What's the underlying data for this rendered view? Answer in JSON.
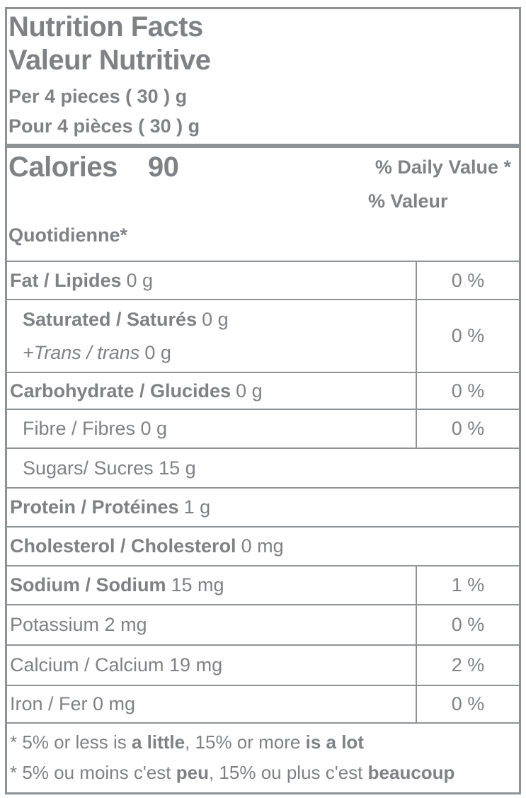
{
  "nutrition_label": {
    "title_en": "Nutrition Facts",
    "title_fr": "Valeur Nutritive",
    "serving_en": "Per 4 pieces ( 30 ) g",
    "serving_fr": "Pour 4 pièces ( 30 ) g",
    "calories": {
      "label": "Calories",
      "value": "90"
    },
    "daily_value_header_en": "% Daily Value *",
    "daily_value_header_fr_line1": "% Valeur",
    "daily_value_header_fr_line2": "Quotidienne*",
    "rows": [
      {
        "name_bold": "Fat / Lipides",
        "value": "0 g",
        "dv": "0 %"
      },
      {
        "name_bold": "Saturated / Saturés",
        "value": "0 g",
        "sub_italic": "+Trans / trans",
        "sub_value": "0 g",
        "dv": "0 %"
      },
      {
        "name_bold": "Carbohydrate / Glucides",
        "value": "0 g",
        "dv": "0 %"
      },
      {
        "name": "Fibre / Fibres 0 g",
        "dv": "0 %"
      },
      {
        "name": "Sugars/ Sucres 15 g"
      },
      {
        "name_bold": "Protein / Protéines",
        "value": "1 g"
      },
      {
        "name_bold": "Cholesterol / Cholesterol",
        "value": "0 mg"
      },
      {
        "name_bold": "Sodium / Sodium",
        "value": "15 mg",
        "dv": "1 %"
      },
      {
        "name": "Potassium 2 mg",
        "dv": "0 %"
      },
      {
        "name": "Calcium / Calcium 19 mg",
        "dv": "2 %"
      },
      {
        "name": "Iron / Fer 0 mg",
        "dv": "0 %"
      }
    ],
    "footnote_en": {
      "parts": [
        "* 5% or less is ",
        "a little",
        ", 15% or more ",
        "is a lot"
      ]
    },
    "footnote_fr": {
      "parts": [
        "* 5% ou moins c'est ",
        "peu",
        ", 15% ou plus c'est ",
        "beaucoup"
      ]
    },
    "colors": {
      "text_gray": "#7f8184",
      "line_gray": "#8f9295",
      "background": "#ffffff"
    }
  }
}
